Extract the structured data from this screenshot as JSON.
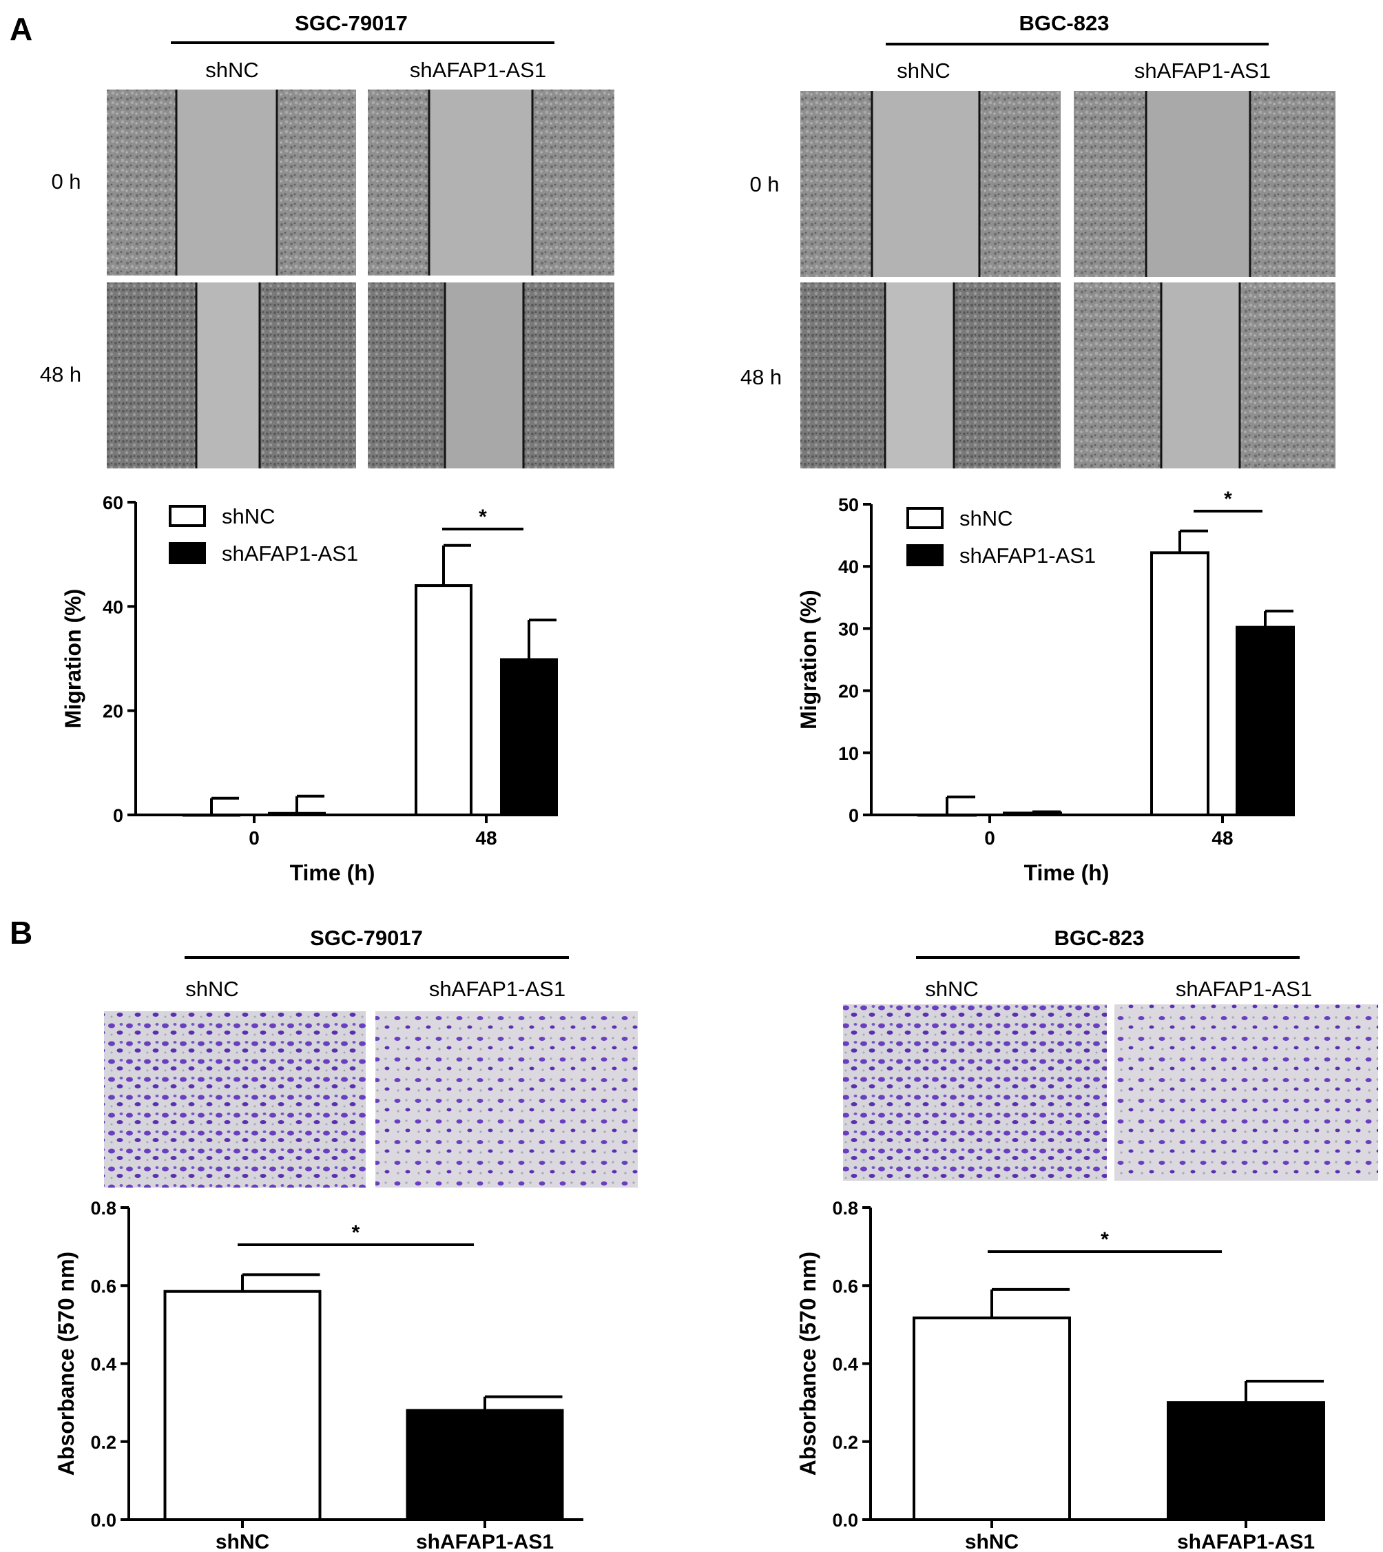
{
  "panels": {
    "A": {
      "letter": "A",
      "groups": [
        {
          "cell_line": "SGC-79017",
          "col_labels": [
            "shNC",
            "shAFAP1-AS1"
          ],
          "row_labels": [
            "0 h",
            "48 h"
          ]
        },
        {
          "cell_line": "BGC-823",
          "col_labels": [
            "shNC",
            "shAFAP1-AS1"
          ],
          "row_labels": [
            "0 h",
            "48 h"
          ]
        }
      ]
    },
    "B": {
      "letter": "B",
      "groups": [
        {
          "cell_line": "SGC-79017",
          "col_labels": [
            "shNC",
            "shAFAP1-AS1"
          ]
        },
        {
          "cell_line": "BGC-823",
          "col_labels": [
            "shNC",
            "shAFAP1-AS1"
          ]
        }
      ]
    }
  },
  "colors": {
    "wound_cells": "#8c8c8c",
    "wound_gap": "#b3b3b3",
    "stain_bg": "#d8d6dc",
    "stain_cells": "#6a3fbf",
    "bar_open": "#ffffff",
    "bar_filled": "#000000"
  },
  "chart_data": [
    {
      "id": "A-left",
      "type": "bar",
      "categories": [
        "0",
        "48"
      ],
      "xlabel": "Time (h)",
      "ylabel": "Migration (%)",
      "ylim": [
        0,
        60
      ],
      "yticks": [
        0,
        20,
        40,
        60
      ],
      "legend": {
        "placement": "top-left",
        "entries": [
          "shNC",
          "shAFAP1-AS1"
        ]
      },
      "series": [
        {
          "name": "shNC",
          "values": [
            0,
            44
          ],
          "errors": [
            3.2,
            7.7
          ]
        },
        {
          "name": "shAFAP1-AS1",
          "values": [
            0.3,
            29.8
          ],
          "errors": [
            3.3,
            7.6
          ]
        }
      ],
      "significance": [
        {
          "category": "48",
          "label": "*"
        }
      ]
    },
    {
      "id": "A-right",
      "type": "bar",
      "categories": [
        "0",
        "48"
      ],
      "xlabel": "Time (h)",
      "ylabel": "Migration (%)",
      "ylim": [
        0,
        50
      ],
      "yticks": [
        0,
        10,
        20,
        30,
        40,
        50
      ],
      "legend": {
        "placement": "top-left",
        "entries": [
          "shNC",
          "shAFAP1-AS1"
        ]
      },
      "series": [
        {
          "name": "shNC",
          "values": [
            0,
            42.2
          ],
          "errors": [
            2.9,
            3.5
          ]
        },
        {
          "name": "shAFAP1-AS1",
          "values": [
            0.3,
            30.2
          ],
          "errors": [
            0.2,
            2.6
          ]
        }
      ],
      "significance": [
        {
          "category": "48",
          "label": "*"
        }
      ]
    },
    {
      "id": "B-left",
      "type": "bar",
      "categories": [
        "shNC",
        "shAFAP1-AS1"
      ],
      "xlabel": "",
      "ylabel": "Absorbance (570 nm)",
      "ylim": [
        0,
        0.8
      ],
      "yticks": [
        "0.0",
        "0.2",
        "0.4",
        "0.6",
        "0.8"
      ],
      "values": [
        0.585,
        0.28
      ],
      "errors": [
        0.043,
        0.035
      ],
      "fills": [
        "open",
        "filled"
      ],
      "significance": [
        {
          "label": "*"
        }
      ]
    },
    {
      "id": "B-right",
      "type": "bar",
      "categories": [
        "shNC",
        "shAFAP1-AS1"
      ],
      "xlabel": "",
      "ylabel": "Absorbance (570 nm)",
      "ylim": [
        0,
        0.8
      ],
      "yticks": [
        "0.0",
        "0.2",
        "0.4",
        "0.6",
        "0.8"
      ],
      "values": [
        0.517,
        0.3
      ],
      "errors": [
        0.073,
        0.055
      ],
      "fills": [
        "open",
        "filled"
      ],
      "significance": [
        {
          "label": "*"
        }
      ]
    }
  ]
}
